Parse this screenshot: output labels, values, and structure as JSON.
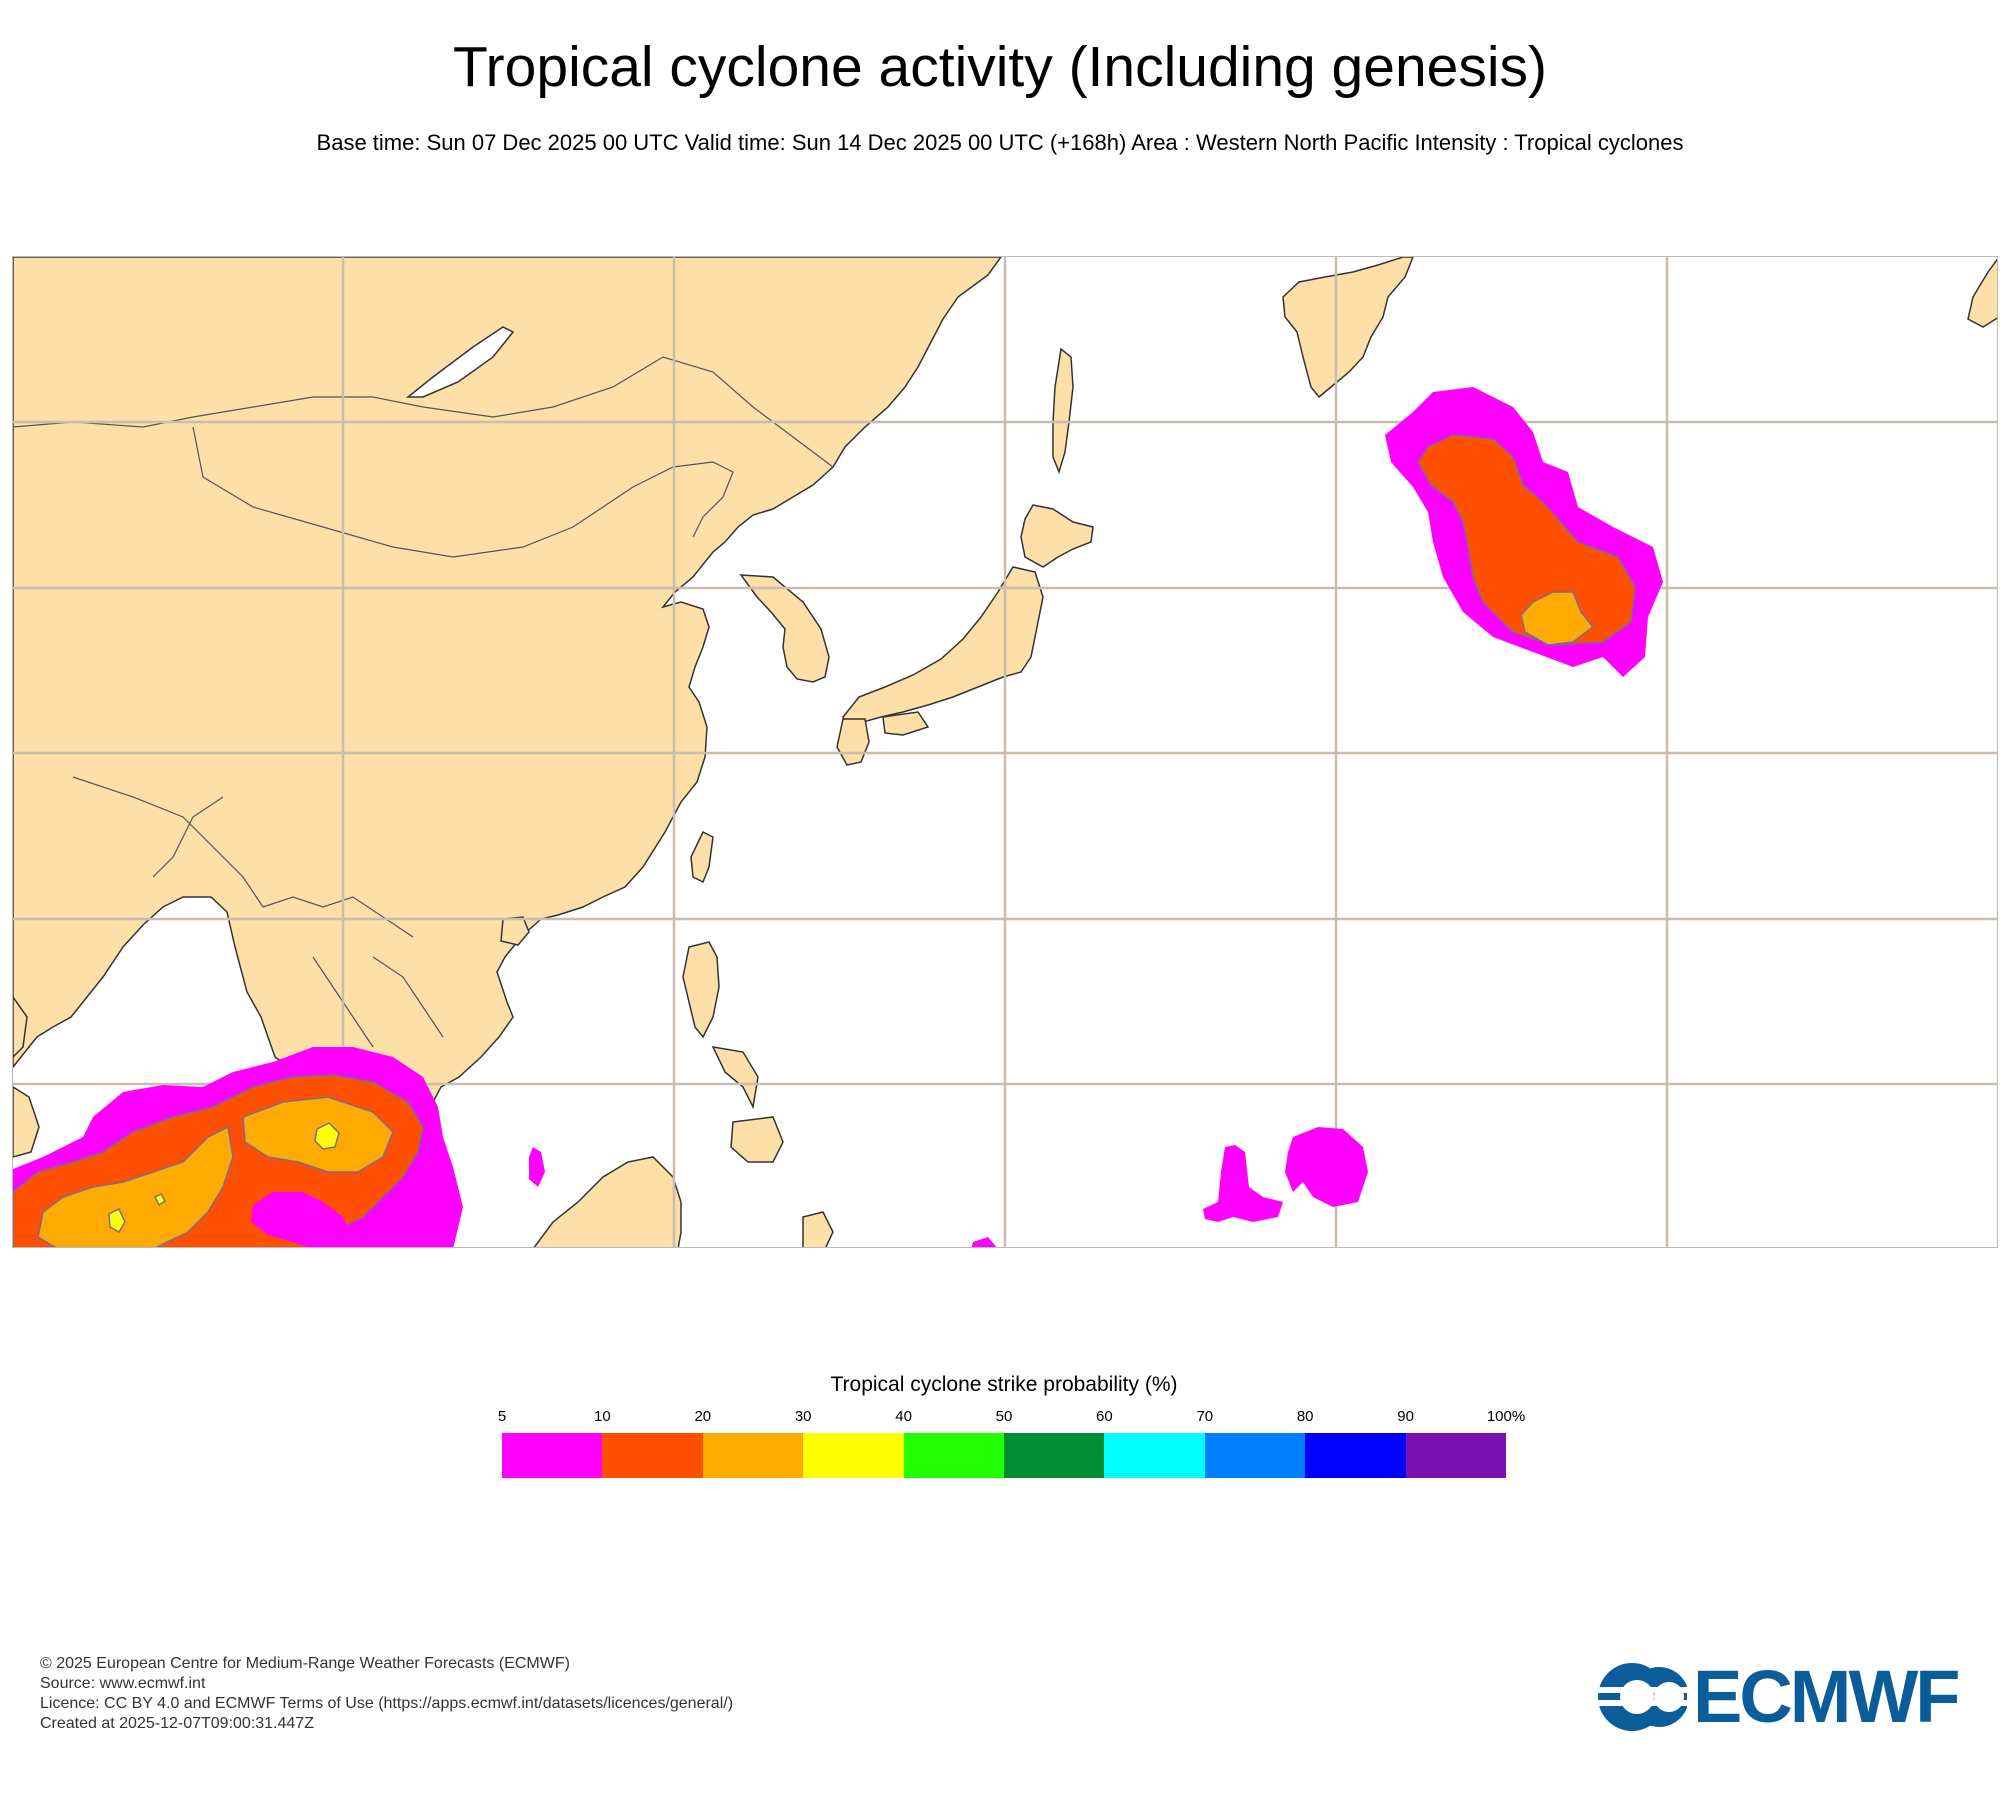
{
  "header": {
    "title": "Tropical cyclone activity (Including genesis)",
    "subtitle": "Base time: Sun 07 Dec 2025 00 UTC Valid time: Sun 14 Dec 2025 00 UTC (+168h) Area : Western North Pacific Intensity : Tropical cyclones"
  },
  "map": {
    "area": "Western North Pacific",
    "land_color": "#fddfa8",
    "ocean_color": "#ffffff",
    "grid_color": "#c8bdb0"
  },
  "legend": {
    "title": "Tropical cyclone strike probability (%)",
    "ticks": [
      "5",
      "10",
      "20",
      "30",
      "40",
      "50",
      "60",
      "70",
      "80",
      "90",
      "100%"
    ],
    "colors": [
      "#ff00ff",
      "#ff5000",
      "#ffaa00",
      "#ffff00",
      "#22ff00",
      "#008c32",
      "#00ffff",
      "#0080ff",
      "#0000ff",
      "#7b12b0"
    ]
  },
  "footer": {
    "copyright": "© 2025 European Centre for Medium-Range Weather Forecasts (ECMWF)",
    "source": "Source: www.ecmwf.int",
    "licence": "Licence: CC BY 4.0 and ECMWF Terms of Use (https://apps.ecmwf.int/datasets/licences/general/)",
    "created": "Created at 2025-12-07T09:00:31.447Z"
  },
  "logo": {
    "text": "ECMWF",
    "color": "#0a5d98"
  }
}
